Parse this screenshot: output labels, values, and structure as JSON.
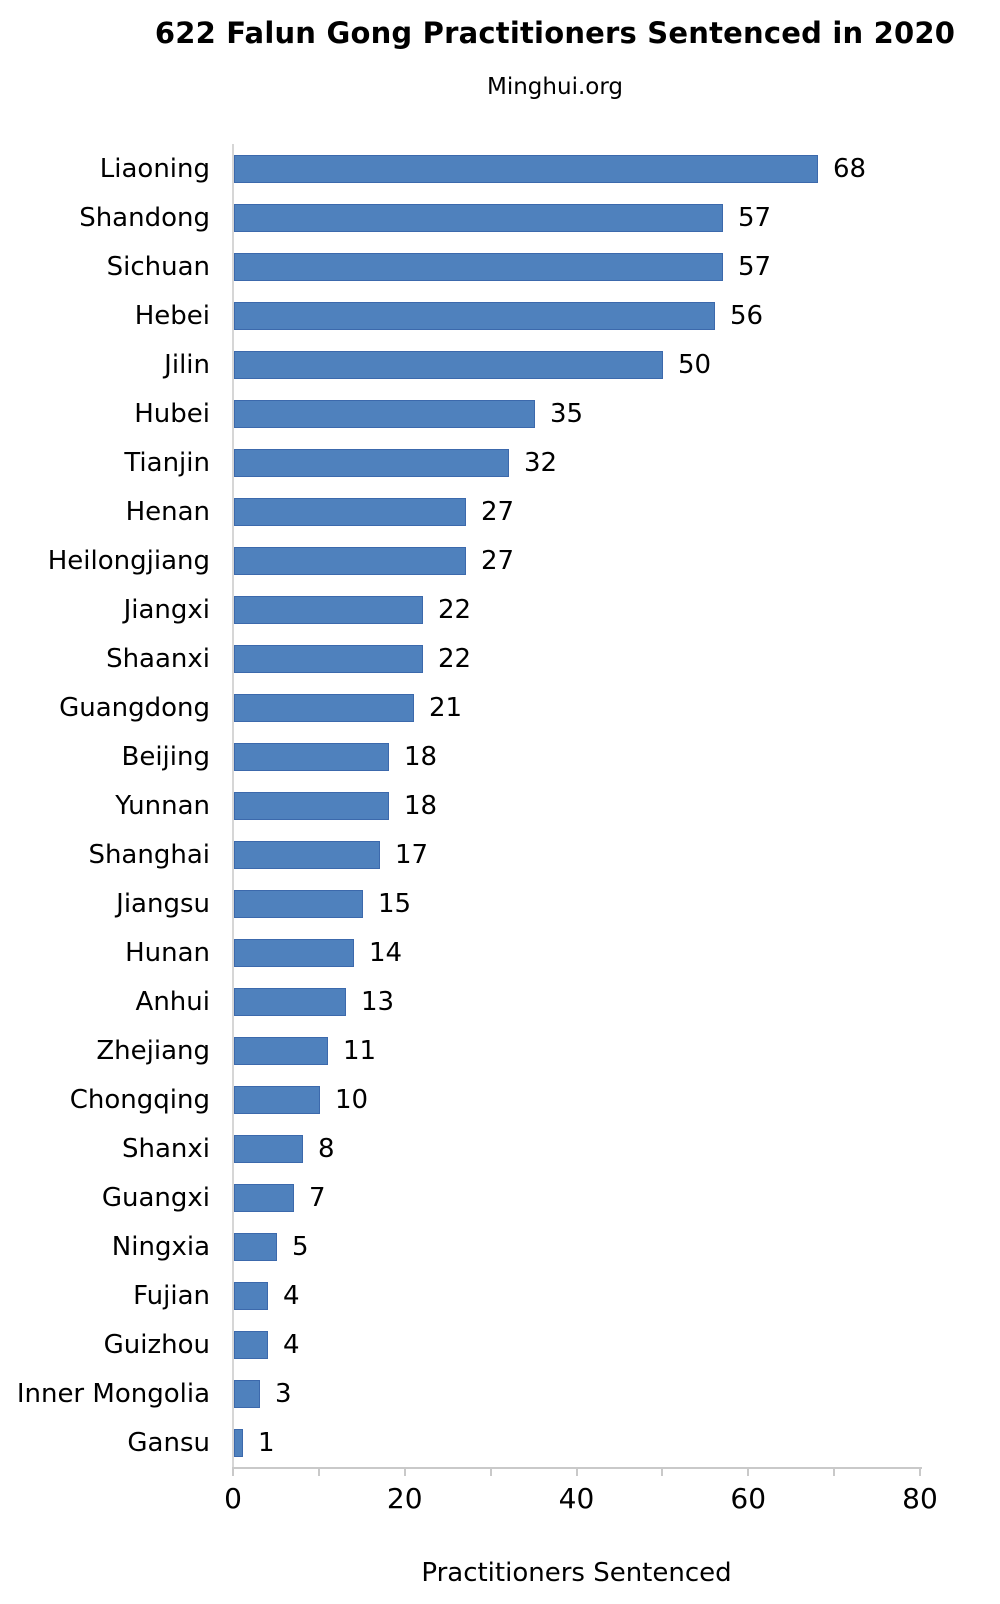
{
  "title": "622 Falun Gong Practitioners Sentenced in 2020",
  "subtitle": "Minghui.org",
  "chart_data": {
    "type": "bar",
    "orientation": "horizontal",
    "title": "622 Falun Gong Practitioners Sentenced in 2020",
    "subtitle": "Minghui.org",
    "xlabel": "Practitioners Sentenced",
    "ylabel": "",
    "xlim": [
      0,
      80
    ],
    "x_major_ticks": [
      0,
      20,
      40,
      60,
      80
    ],
    "x_minor_tick_step": 10,
    "grid": false,
    "legend": false,
    "data_labels": true,
    "categories": [
      "Liaoning",
      "Shandong",
      "Sichuan",
      "Hebei",
      "Jilin",
      "Hubei",
      "Tianjin",
      "Henan",
      "Heilongjiang",
      "Jiangxi",
      "Shaanxi",
      "Guangdong",
      "Beijing",
      "Yunnan",
      "Shanghai",
      "Jiangsu",
      "Hunan",
      "Anhui",
      "Zhejiang",
      "Chongqing",
      "Shanxi",
      "Guangxi",
      "Ningxia",
      "Fujian",
      "Guizhou",
      "Inner Mongolia",
      "Gansu"
    ],
    "values": [
      68,
      57,
      57,
      56,
      50,
      35,
      32,
      27,
      27,
      22,
      22,
      21,
      18,
      18,
      17,
      15,
      14,
      13,
      11,
      10,
      8,
      7,
      5,
      4,
      4,
      3,
      1
    ],
    "total": 622,
    "colors": {
      "bar_fill": "#4f81bd",
      "bar_border": "#3c69ac",
      "axis_line": "#c9c9c9",
      "text": "#000000",
      "background": "#ffffff"
    }
  }
}
